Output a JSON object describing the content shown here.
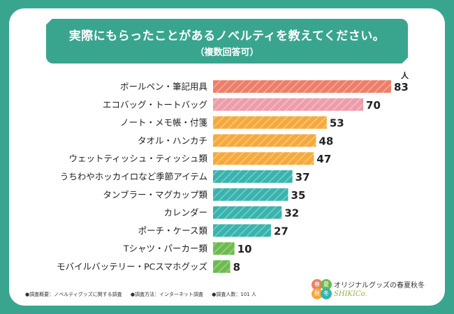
{
  "colors": {
    "background": "#3aa58f",
    "red": "#ec7f69",
    "pink": "#ee9ca9",
    "orange": "#f5a93c",
    "teal": "#38b3ad",
    "green": "#6dbb4f"
  },
  "chart_data": {
    "type": "bar",
    "orientation": "horizontal",
    "title": "実際にもらったことがあるノベルティを教えてください。",
    "subtitle": "（複数回答可）",
    "unit": "人",
    "categories": [
      "ボールペン・筆記用具",
      "エコバッグ・トートバッグ",
      "ノート・メモ帳・付箋",
      "タオル・ハンカチ",
      "ウェットティッシュ・ティッシュ類",
      "うちわやホッカイロなど季節アイテム",
      "タンブラー・マグカップ類",
      "カレンダー",
      "ポーチ・ケース類",
      "Tシャツ・パーカー類",
      "モバイルバッテリー・PCスマホグッズ"
    ],
    "values": [
      83,
      70,
      53,
      48,
      47,
      37,
      35,
      32,
      27,
      10,
      8
    ],
    "bar_colors": [
      "red",
      "pink",
      "orange",
      "orange",
      "orange",
      "teal",
      "teal",
      "teal",
      "teal",
      "green",
      "green"
    ],
    "xlim": [
      0,
      83
    ]
  },
  "footer": {
    "overview": "●調査概要：ノベルティグッズに関する調査",
    "method": "●調査方法：インターネット調査",
    "count": "●調査人数：101 人"
  },
  "logo": {
    "text": "オリジナルグッズの春夏秋冬",
    "sub": "SHIKICo.",
    "chars": [
      "春",
      "夏",
      "秋",
      "冬"
    ]
  }
}
